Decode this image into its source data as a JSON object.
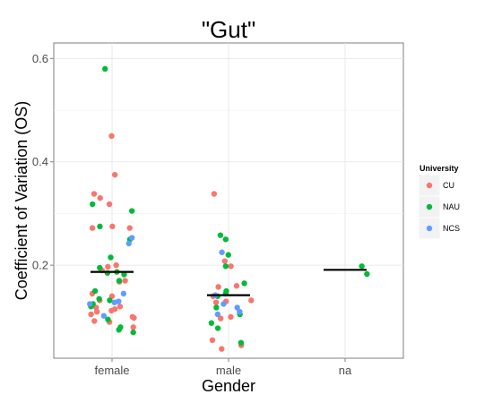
{
  "chart_data": {
    "type": "scatter",
    "title": "\"Gut\"",
    "xlabel": "Gender",
    "ylabel": "Coefficient of Variation (OS)",
    "categories": [
      "female",
      "male",
      "na"
    ],
    "ylim": [
      0.02,
      0.63
    ],
    "yticks": [
      0.2,
      0.4,
      0.6
    ],
    "yticklabels": [
      "0.2",
      "0.4",
      "0.6"
    ],
    "grid": true,
    "legend": {
      "title": "University",
      "placement": "right",
      "entries": [
        "CU",
        "NAU",
        "NCS"
      ]
    },
    "colors": {
      "CU": "#F8766D",
      "NAU": "#00BA38",
      "NCS": "#619CFF"
    },
    "means": [
      {
        "category": "female",
        "value": 0.187
      },
      {
        "category": "male",
        "value": 0.142
      },
      {
        "category": "na",
        "value": 0.191
      }
    ],
    "series": [
      {
        "name": "CU",
        "points": [
          {
            "x": "female",
            "y": 0.45
          },
          {
            "x": "female",
            "y": 0.375
          },
          {
            "x": "female",
            "y": 0.338
          },
          {
            "x": "female",
            "y": 0.33
          },
          {
            "x": "female",
            "y": 0.318
          },
          {
            "x": "female",
            "y": 0.275
          },
          {
            "x": "female",
            "y": 0.272
          },
          {
            "x": "female",
            "y": 0.272
          },
          {
            "x": "female",
            "y": 0.2
          },
          {
            "x": "female",
            "y": 0.197
          },
          {
            "x": "female",
            "y": 0.19
          },
          {
            "x": "female",
            "y": 0.17
          },
          {
            "x": "female",
            "y": 0.168
          },
          {
            "x": "female",
            "y": 0.145
          },
          {
            "x": "female",
            "y": 0.14
          },
          {
            "x": "female",
            "y": 0.132
          },
          {
            "x": "female",
            "y": 0.12
          },
          {
            "x": "female",
            "y": 0.118
          },
          {
            "x": "female",
            "y": 0.115
          },
          {
            "x": "female",
            "y": 0.112
          },
          {
            "x": "female",
            "y": 0.11
          },
          {
            "x": "female",
            "y": 0.105
          },
          {
            "x": "female",
            "y": 0.1
          },
          {
            "x": "female",
            "y": 0.098
          },
          {
            "x": "female",
            "y": 0.092
          },
          {
            "x": "female",
            "y": 0.09
          },
          {
            "x": "female",
            "y": 0.08
          },
          {
            "x": "male",
            "y": 0.338
          },
          {
            "x": "male",
            "y": 0.208
          },
          {
            "x": "male",
            "y": 0.198
          },
          {
            "x": "male",
            "y": 0.16
          },
          {
            "x": "male",
            "y": 0.158
          },
          {
            "x": "male",
            "y": 0.14
          },
          {
            "x": "male",
            "y": 0.132
          },
          {
            "x": "male",
            "y": 0.13
          },
          {
            "x": "male",
            "y": 0.128
          },
          {
            "x": "male",
            "y": 0.1
          },
          {
            "x": "male",
            "y": 0.097
          },
          {
            "x": "male",
            "y": 0.055
          },
          {
            "x": "male",
            "y": 0.045
          },
          {
            "x": "male",
            "y": 0.038
          }
        ]
      },
      {
        "name": "NAU",
        "points": [
          {
            "x": "female",
            "y": 0.58
          },
          {
            "x": "female",
            "y": 0.318
          },
          {
            "x": "female",
            "y": 0.305
          },
          {
            "x": "female",
            "y": 0.275
          },
          {
            "x": "female",
            "y": 0.25
          },
          {
            "x": "female",
            "y": 0.215
          },
          {
            "x": "female",
            "y": 0.195
          },
          {
            "x": "female",
            "y": 0.187
          },
          {
            "x": "female",
            "y": 0.185
          },
          {
            "x": "female",
            "y": 0.182
          },
          {
            "x": "female",
            "y": 0.17
          },
          {
            "x": "female",
            "y": 0.15
          },
          {
            "x": "female",
            "y": 0.135
          },
          {
            "x": "female",
            "y": 0.132
          },
          {
            "x": "female",
            "y": 0.125
          },
          {
            "x": "female",
            "y": 0.12
          },
          {
            "x": "female",
            "y": 0.095
          },
          {
            "x": "female",
            "y": 0.08
          },
          {
            "x": "female",
            "y": 0.075
          },
          {
            "x": "female",
            "y": 0.07
          },
          {
            "x": "male",
            "y": 0.258
          },
          {
            "x": "male",
            "y": 0.25
          },
          {
            "x": "male",
            "y": 0.22
          },
          {
            "x": "male",
            "y": 0.198
          },
          {
            "x": "male",
            "y": 0.165
          },
          {
            "x": "male",
            "y": 0.15
          },
          {
            "x": "male",
            "y": 0.145
          },
          {
            "x": "male",
            "y": 0.14
          },
          {
            "x": "male",
            "y": 0.118
          },
          {
            "x": "male",
            "y": 0.105
          },
          {
            "x": "male",
            "y": 0.088
          },
          {
            "x": "male",
            "y": 0.078
          },
          {
            "x": "male",
            "y": 0.05
          },
          {
            "x": "na",
            "y": 0.198
          },
          {
            "x": "na",
            "y": 0.183
          }
        ]
      },
      {
        "name": "NCS",
        "points": [
          {
            "x": "female",
            "y": 0.253
          },
          {
            "x": "female",
            "y": 0.242
          },
          {
            "x": "female",
            "y": 0.145
          },
          {
            "x": "female",
            "y": 0.13
          },
          {
            "x": "female",
            "y": 0.128
          },
          {
            "x": "female",
            "y": 0.125
          },
          {
            "x": "female",
            "y": 0.102
          },
          {
            "x": "male",
            "y": 0.225
          },
          {
            "x": "male",
            "y": 0.142
          },
          {
            "x": "male",
            "y": 0.125
          },
          {
            "x": "male",
            "y": 0.118
          },
          {
            "x": "male",
            "y": 0.11
          },
          {
            "x": "male",
            "y": 0.105
          }
        ]
      }
    ]
  }
}
